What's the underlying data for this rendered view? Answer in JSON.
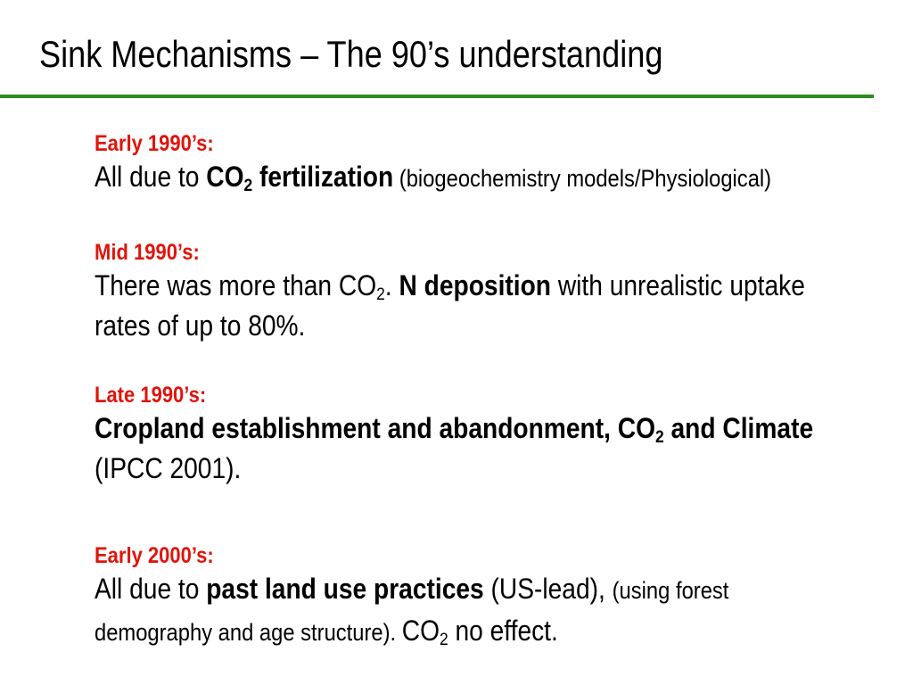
{
  "slide": {
    "title": "Sink Mechanisms – The 90’s understanding",
    "accent_color": "#2e8b1f",
    "heading_color": "#e0140a"
  },
  "sections": {
    "early_1990s": {
      "heading": "Early 1990’s:",
      "text_1": "All due to ",
      "bold_1": "CO",
      "bold_sub": "2",
      "bold_2": " fertilization",
      "small": " (biogeochemistry models/Physiological)"
    },
    "mid_1990s": {
      "heading": "Mid 1990’s:",
      "text_1": "There was more than CO",
      "sub_1": "2",
      "text_2": ". ",
      "bold_1": "N deposition",
      "text_3": " with unrealistic uptake rates of up to 80%."
    },
    "late_1990s": {
      "heading": "Late 1990’s:",
      "bold_1": "Cropland establishment and abandonment, CO",
      "bold_sub": "2",
      "bold_2": " and Climate",
      "text_1": " (IPCC 2001)."
    },
    "early_2000s": {
      "heading": "Early 2000’s:",
      "text_1": "All due to ",
      "bold_1": "past land use practices",
      "text_2": " (US-lead), ",
      "small": "(using forest demography and age structure). ",
      "text_3": "CO",
      "sub_1": "2",
      "text_4": " no effect."
    }
  }
}
